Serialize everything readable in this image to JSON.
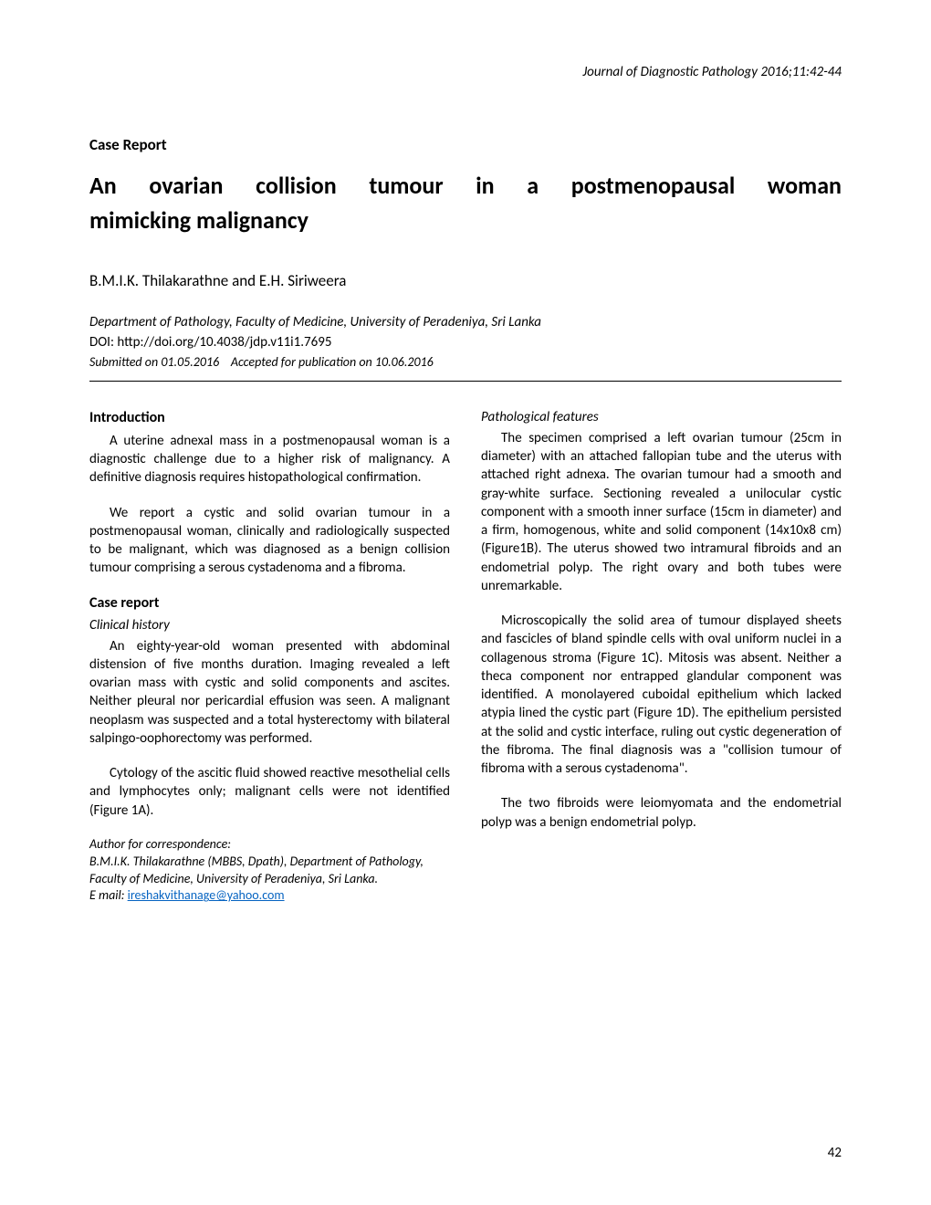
{
  "journal_header": "Journal of Diagnostic Pathology 2016;11:42-44",
  "article_type": "Case Report",
  "title_line1": "An ovarian collision tumour in a postmenopausal woman",
  "title_line2": "mimicking malignancy",
  "authors": "B.M.I.K. Thilakarathne and E.H. Siriweera",
  "affiliation": "Department of Pathology, Faculty of Medicine, University of Peradeniya,  Sri Lanka",
  "doi": "DOI: http://doi.org/10.4038/jdp.v11i1.7695",
  "submitted": "Submitted on 01.05.2016",
  "accepted": "Accepted for publication on 10.06.2016",
  "introduction": {
    "heading": "Introduction",
    "p1": "A uterine adnexal mass in a postmenopausal woman is a diagnostic challenge due to a higher risk of malignancy. A definitive diagnosis requires histopathological confirmation.",
    "p2": "We report a cystic and solid ovarian tumour in a postmenopausal woman, clinically and radiologically suspected to be malignant, which was diagnosed as a benign collision tumour comprising a serous cystadenoma and a fibroma."
  },
  "case_report": {
    "heading": "Case report",
    "clinical_history": {
      "subheading": "Clinical history",
      "p1": "An eighty-year-old woman presented with abdominal distension of five months duration. Imaging revealed a left ovarian mass with cystic and solid components and ascites. Neither pleural nor pericardial effusion was seen. A malignant neoplasm was suspected and a total hysterectomy with bilateral salpingo-oophorectomy was performed.",
      "p2": "Cytology of the ascitic fluid showed reactive mesothelial cells and lymphocytes only; malignant cells were not identified (Figure 1A)."
    },
    "pathological": {
      "subheading": "Pathological features",
      "p1": "The specimen comprised a left ovarian tumour (25cm in diameter) with an attached fallopian tube and the uterus with attached right adnexa. The ovarian tumour had a smooth and gray-white surface. Sectioning revealed a unilocular cystic component with a smooth inner surface (15cm in diameter) and a firm, homogenous, white and solid component (14x10x8 cm) (Figure1B).  The uterus showed two intramural fibroids and an endometrial polyp. The right ovary and both tubes were unremarkable.",
      "p2": "Microscopically the solid area of tumour displayed sheets and fascicles of bland spindle cells with oval uniform nuclei in a collagenous stroma (Figure 1C). Mitosis was absent. Neither a theca component nor entrapped glandular component was identified. A monolayered cuboidal epithelium which lacked atypia lined the cystic part (Figure 1D). The epithelium persisted at the solid and cystic interface, ruling out cystic degeneration of the fibroma. The final diagnosis was a \"collision tumour of fibroma with a serous cystadenoma\".",
      "p3": "The two fibroids were leiomyomata and the endometrial polyp was a benign endometrial polyp."
    }
  },
  "correspondence": {
    "label": "Author for correspondence:",
    "author": "B.M.I.K. Thilakarathne (MBBS, Dpath), Department of Pathology, Faculty of Medicine, University of Peradeniya, Sri Lanka.",
    "email_label": "E mail: ",
    "email": "ireshakvithanage@yahoo.com"
  },
  "page_number": "42",
  "colors": {
    "text": "#000000",
    "background": "#ffffff",
    "link": "#0563c1"
  }
}
